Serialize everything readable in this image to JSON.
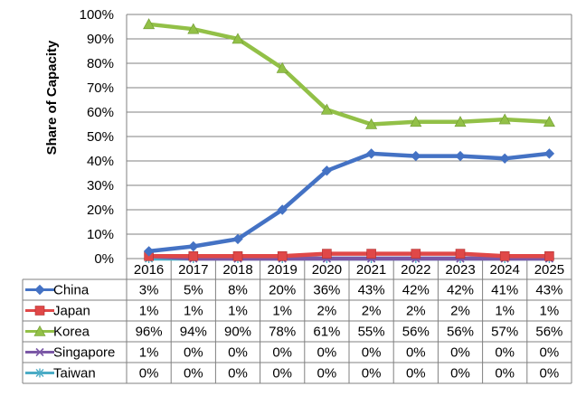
{
  "chart_data": {
    "type": "line",
    "ylabel": "Share of Capacity",
    "categories": [
      "2016",
      "2017",
      "2018",
      "2019",
      "2020",
      "2021",
      "2022",
      "2023",
      "2024",
      "2025"
    ],
    "y_ticks": [
      "0%",
      "10%",
      "20%",
      "30%",
      "40%",
      "50%",
      "60%",
      "70%",
      "80%",
      "90%",
      "100%"
    ],
    "ylim": [
      0,
      100
    ],
    "grid": true,
    "legend": "data-table",
    "series": [
      {
        "name": "China",
        "color": "#4472C4",
        "marker": "diamond",
        "values": [
          3,
          5,
          8,
          20,
          36,
          43,
          42,
          42,
          41,
          43
        ],
        "labels": [
          "3%",
          "5%",
          "8%",
          "20%",
          "36%",
          "43%",
          "42%",
          "42%",
          "41%",
          "43%"
        ]
      },
      {
        "name": "Japan",
        "color": "#E04848",
        "marker": "square",
        "values": [
          1,
          1,
          1,
          1,
          2,
          2,
          2,
          2,
          1,
          1
        ],
        "labels": [
          "1%",
          "1%",
          "1%",
          "1%",
          "2%",
          "2%",
          "2%",
          "2%",
          "1%",
          "1%"
        ]
      },
      {
        "name": "Korea",
        "color": "#92C047",
        "marker": "triangle",
        "values": [
          96,
          94,
          90,
          78,
          61,
          55,
          56,
          56,
          57,
          56
        ],
        "labels": [
          "96%",
          "94%",
          "90%",
          "78%",
          "61%",
          "55%",
          "56%",
          "56%",
          "57%",
          "56%"
        ]
      },
      {
        "name": "Singapore",
        "color": "#7B58A6",
        "marker": "x",
        "values": [
          1,
          0,
          0,
          0,
          0,
          0,
          0,
          0,
          0,
          0
        ],
        "labels": [
          "1%",
          "0%",
          "0%",
          "0%",
          "0%",
          "0%",
          "0%",
          "0%",
          "0%",
          "0%"
        ]
      },
      {
        "name": "Taiwan",
        "color": "#4BACC6",
        "marker": "star",
        "values": [
          0,
          0,
          0,
          0,
          0,
          0,
          0,
          0,
          0,
          0
        ],
        "labels": [
          "0%",
          "0%",
          "0%",
          "0%",
          "0%",
          "0%",
          "0%",
          "0%",
          "0%",
          "0%"
        ]
      }
    ]
  }
}
